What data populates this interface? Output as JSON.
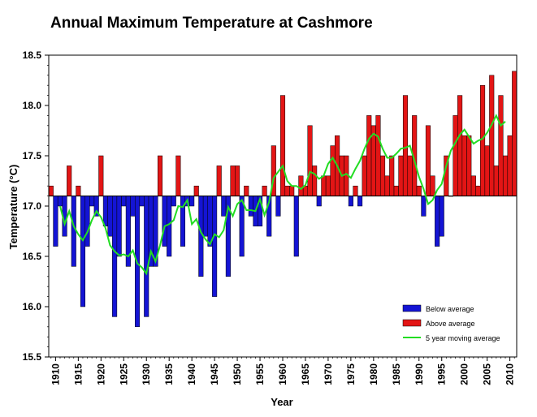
{
  "chart_data": {
    "type": "bar",
    "title": "Annual Maximum Temperature at Cashmore",
    "xlabel": "Year",
    "ylabel": "Temperature (°C)",
    "baseline": 17.1,
    "ylim": [
      15.5,
      18.5
    ],
    "yticks": [
      "15.5",
      "16.0",
      "16.5",
      "17.0",
      "17.5",
      "18.0",
      "18.5"
    ],
    "xticks": [
      "1910",
      "1915",
      "1920",
      "1925",
      "1930",
      "1935",
      "1940",
      "1945",
      "1950",
      "1955",
      "1960",
      "1965",
      "1970",
      "1975",
      "1980",
      "1985",
      "1990",
      "1995",
      "2000",
      "2005",
      "2010"
    ],
    "grid": false,
    "legend_position": "bottom-right",
    "colors": {
      "above": "#e31515",
      "below": "#1414d4",
      "moving_average": "#22dd22"
    },
    "series": [
      {
        "name": "Below average / Above average",
        "x": [
          1909,
          1910,
          1911,
          1912,
          1913,
          1914,
          1915,
          1916,
          1917,
          1918,
          1919,
          1920,
          1921,
          1922,
          1923,
          1924,
          1925,
          1926,
          1927,
          1928,
          1929,
          1930,
          1931,
          1932,
          1933,
          1934,
          1935,
          1936,
          1937,
          1938,
          1939,
          1940,
          1941,
          1942,
          1943,
          1944,
          1945,
          1946,
          1947,
          1948,
          1949,
          1950,
          1951,
          1952,
          1953,
          1954,
          1955,
          1956,
          1957,
          1958,
          1959,
          1960,
          1961,
          1962,
          1963,
          1964,
          1965,
          1966,
          1967,
          1968,
          1969,
          1970,
          1971,
          1972,
          1973,
          1974,
          1975,
          1976,
          1977,
          1978,
          1979,
          1980,
          1981,
          1982,
          1983,
          1984,
          1985,
          1986,
          1987,
          1988,
          1989,
          1990,
          1991,
          1992,
          1993,
          1994,
          1995,
          1996,
          1997,
          1998,
          1999,
          2000,
          2001,
          2002,
          2003,
          2004,
          2005,
          2006,
          2007,
          2008,
          2009,
          2010,
          2011
        ],
        "values": [
          17.2,
          16.6,
          17.0,
          16.7,
          17.4,
          16.4,
          17.2,
          16.0,
          16.6,
          17.0,
          16.9,
          17.5,
          16.8,
          16.7,
          15.9,
          16.5,
          17.0,
          16.4,
          16.9,
          15.8,
          17.0,
          15.9,
          16.4,
          16.4,
          17.5,
          16.6,
          16.5,
          17.0,
          17.5,
          16.6,
          17.0,
          17.0,
          17.2,
          16.3,
          16.7,
          16.6,
          16.1,
          17.4,
          16.9,
          16.3,
          17.4,
          17.4,
          16.5,
          17.2,
          16.9,
          16.8,
          16.8,
          17.2,
          16.7,
          17.6,
          16.9,
          18.1,
          17.2,
          17.2,
          16.5,
          17.3,
          17.2,
          17.8,
          17.4,
          17.0,
          17.3,
          17.3,
          17.6,
          17.7,
          17.5,
          17.5,
          17.0,
          17.2,
          17.0,
          17.5,
          17.9,
          17.8,
          17.9,
          17.5,
          17.3,
          17.5,
          17.2,
          17.5,
          18.1,
          17.5,
          17.9,
          17.2,
          16.9,
          17.8,
          17.3,
          16.6,
          16.7,
          17.5,
          17.1,
          17.9,
          18.1,
          17.7,
          17.7,
          17.3,
          17.2,
          18.2,
          17.6,
          18.3,
          17.4,
          18.1,
          17.5,
          17.7,
          18.34
        ]
      },
      {
        "name": "5 year moving average",
        "x": [
          1911,
          1912,
          1913,
          1914,
          1915,
          1916,
          1917,
          1918,
          1919,
          1920,
          1921,
          1922,
          1923,
          1924,
          1925,
          1926,
          1927,
          1928,
          1929,
          1930,
          1931,
          1932,
          1933,
          1934,
          1935,
          1936,
          1937,
          1938,
          1939,
          1940,
          1941,
          1942,
          1943,
          1944,
          1945,
          1946,
          1947,
          1948,
          1949,
          1950,
          1951,
          1952,
          1953,
          1954,
          1955,
          1956,
          1957,
          1958,
          1959,
          1960,
          1961,
          1962,
          1963,
          1964,
          1965,
          1966,
          1967,
          1968,
          1969,
          1970,
          1971,
          1972,
          1973,
          1974,
          1975,
          1976,
          1977,
          1978,
          1979,
          1980,
          1981,
          1982,
          1983,
          1984,
          1985,
          1986,
          1987,
          1988,
          1989,
          1990,
          1991,
          1992,
          1993,
          1994,
          1995,
          1996,
          1997,
          1998,
          1999,
          2000,
          2001,
          2002,
          2003,
          2004,
          2005,
          2006,
          2007,
          2008,
          2009
        ],
        "values": [
          17.0,
          16.82,
          16.95,
          16.8,
          16.72,
          16.66,
          16.74,
          16.86,
          16.95,
          16.89,
          16.78,
          16.61,
          16.55,
          16.51,
          16.52,
          16.5,
          16.56,
          16.43,
          16.39,
          16.33,
          16.55,
          16.45,
          16.61,
          16.8,
          16.82,
          16.86,
          17.0,
          16.99,
          17.06,
          16.82,
          16.87,
          16.74,
          16.67,
          16.62,
          16.72,
          16.69,
          16.76,
          16.99,
          16.9,
          17.02,
          17.06,
          16.96,
          16.96,
          16.95,
          17.07,
          16.91,
          17.04,
          17.28,
          17.34,
          17.4,
          17.25,
          17.2,
          17.2,
          17.17,
          17.21,
          17.34,
          17.32,
          17.27,
          17.3,
          17.42,
          17.48,
          17.4,
          17.3,
          17.32,
          17.28,
          17.37,
          17.45,
          17.57,
          17.67,
          17.72,
          17.69,
          17.57,
          17.48,
          17.48,
          17.52,
          17.57,
          17.58,
          17.6,
          17.45,
          17.29,
          17.17,
          17.02,
          17.06,
          17.16,
          17.22,
          17.4,
          17.55,
          17.63,
          17.71,
          17.76,
          17.69,
          17.62,
          17.65,
          17.67,
          17.73,
          17.81,
          17.9,
          17.8,
          17.84
        ]
      }
    ],
    "legend": [
      {
        "label": "Below average",
        "swatch": "below"
      },
      {
        "label": "Above average",
        "swatch": "above"
      },
      {
        "label": "5 year moving average",
        "swatch": "line"
      }
    ]
  }
}
